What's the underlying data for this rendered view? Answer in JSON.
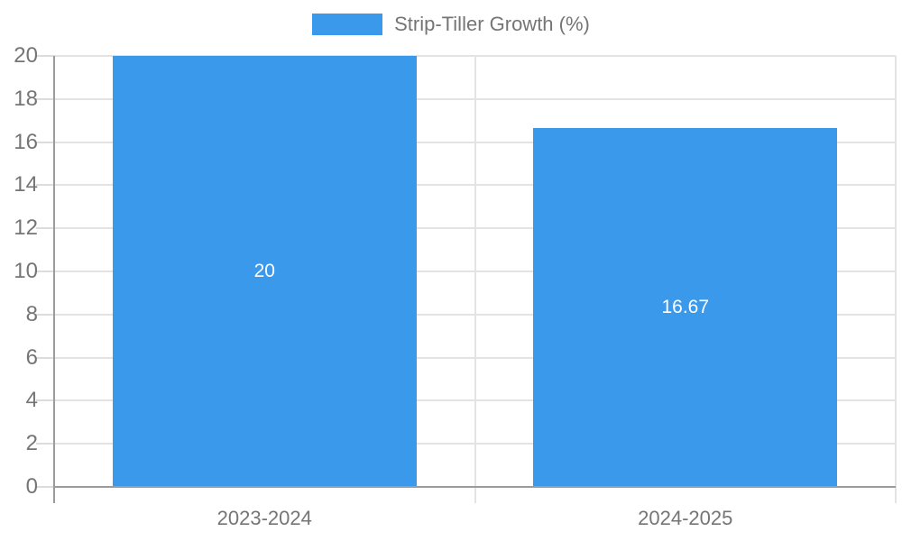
{
  "chart_data": {
    "type": "bar",
    "title": "",
    "legend": {
      "label": "Strip-Tiller Growth (%)",
      "position": "top-center"
    },
    "categories": [
      "2023-2024",
      "2024-2025"
    ],
    "series": [
      {
        "name": "Strip-Tiller Growth (%)",
        "values": [
          20,
          16.67
        ]
      }
    ],
    "value_labels": [
      "20",
      "16.67"
    ],
    "xlabel": "",
    "ylabel": "",
    "ylim": [
      0,
      20
    ],
    "ytick_step": 2,
    "yticks": [
      0,
      2,
      4,
      6,
      8,
      10,
      12,
      14,
      16,
      18,
      20
    ],
    "grid": true,
    "legend_position": "top",
    "colors": {
      "bar": "#3B99EC",
      "axis": "#9B9B9B",
      "grid": "#E3E3E3",
      "tick": "#DCDCDC",
      "tick_label": "#757575",
      "bar_label": "#FFFFFF",
      "legend_label": "#757575"
    }
  }
}
